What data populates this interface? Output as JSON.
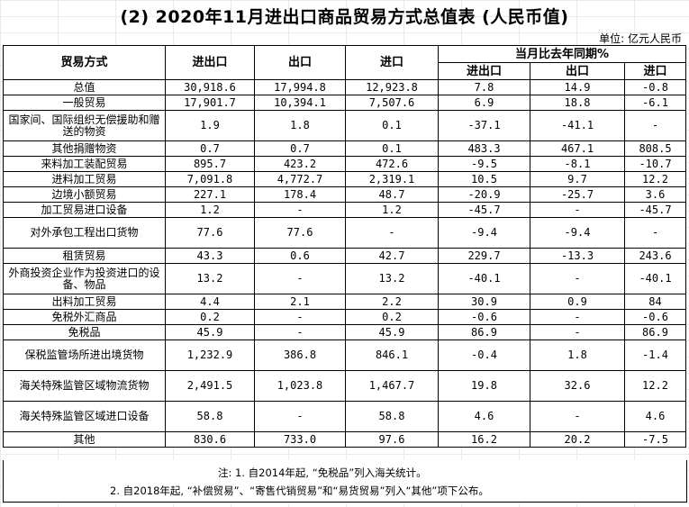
{
  "title": "(2) 2020年11月进出口商品贸易方式总值表 (人民币值)",
  "unit": "单位: 亿元人民币",
  "headers": {
    "mode": "贸易方式",
    "total": "进出口",
    "export": "出口",
    "import": "进口",
    "yoy": "当月比去年同期%",
    "yoy_total": "进出口",
    "yoy_export": "出口",
    "yoy_import": "进口"
  },
  "rows": [
    {
      "name": "总值",
      "total": "30,918.6",
      "export": "17,994.8",
      "import": "12,923.8",
      "yt": "7.8",
      "ye": "14.9",
      "yi": "-0.8"
    },
    {
      "name": "一般贸易",
      "total": "17,901.7",
      "export": "10,394.1",
      "import": "7,507.6",
      "yt": "6.9",
      "ye": "18.8",
      "yi": "-6.1"
    },
    {
      "name": "国家间、国际组织无偿援助和赠送的物资",
      "total": "1.9",
      "export": "1.8",
      "import": "0.1",
      "yt": "-37.1",
      "ye": "-41.1",
      "yi": "-"
    },
    {
      "name": "其他捐赠物资",
      "total": "0.7",
      "export": "0.7",
      "import": "0.1",
      "yt": "483.3",
      "ye": "467.1",
      "yi": "808.5"
    },
    {
      "name": "来料加工装配贸易",
      "total": "895.7",
      "export": "423.2",
      "import": "472.6",
      "yt": "-9.5",
      "ye": "-8.1",
      "yi": "-10.7"
    },
    {
      "name": "进料加工贸易",
      "total": "7,091.8",
      "export": "4,772.7",
      "import": "2,319.1",
      "yt": "10.5",
      "ye": "9.7",
      "yi": "12.2"
    },
    {
      "name": "边境小额贸易",
      "total": "227.1",
      "export": "178.4",
      "import": "48.7",
      "yt": "-20.9",
      "ye": "-25.7",
      "yi": "3.6"
    },
    {
      "name": "加工贸易进口设备",
      "total": "1.2",
      "export": "-",
      "import": "1.2",
      "yt": "-45.7",
      "ye": "-",
      "yi": "-45.7"
    },
    {
      "name": "对外承包工程出口货物",
      "total": "77.6",
      "export": "77.6",
      "import": "-",
      "yt": "-9.4",
      "ye": "-9.4",
      "yi": "-"
    },
    {
      "name": "租赁贸易",
      "total": "43.3",
      "export": "0.6",
      "import": "42.7",
      "yt": "229.7",
      "ye": "-13.3",
      "yi": "243.6"
    },
    {
      "name": "外商投资企业作为投资进口的设备、物品",
      "total": "13.2",
      "export": "-",
      "import": "13.2",
      "yt": "-40.1",
      "ye": "-",
      "yi": "-40.1"
    },
    {
      "name": "出料加工贸易",
      "total": "4.4",
      "export": "2.1",
      "import": "2.2",
      "yt": "30.9",
      "ye": "0.9",
      "yi": "84"
    },
    {
      "name": "免税外汇商品",
      "total": "0.2",
      "export": "-",
      "import": "0.2",
      "yt": "-0.6",
      "ye": "-",
      "yi": "-0.6"
    },
    {
      "name": "免税品",
      "total": "45.9",
      "export": "-",
      "import": "45.9",
      "yt": "86.9",
      "ye": "-",
      "yi": "86.9"
    },
    {
      "name": "保税监管场所进出境货物",
      "total": "1,232.9",
      "export": "386.8",
      "import": "846.1",
      "yt": "-0.4",
      "ye": "1.8",
      "yi": "-1.4"
    },
    {
      "name": "海关特殊监管区域物流货物",
      "total": "2,491.5",
      "export": "1,023.8",
      "import": "1,467.7",
      "yt": "19.8",
      "ye": "32.6",
      "yi": "12.2"
    },
    {
      "name": "海关特殊监管区域进口设备",
      "total": "58.8",
      "export": "-",
      "import": "58.8",
      "yt": "4.6",
      "ye": "-",
      "yi": "4.6"
    },
    {
      "name": "其他",
      "total": "830.6",
      "export": "733.0",
      "import": "97.6",
      "yt": "16.2",
      "ye": "20.2",
      "yi": "-7.5"
    }
  ],
  "notes": {
    "line1": "注: 1. 自2014年起, “免税品”列入海关统计。",
    "line2": "2. 自2018年起, “补偿贸易”、“寄售代销贸易”和“易货贸易”列入“其他”项下公布。"
  }
}
